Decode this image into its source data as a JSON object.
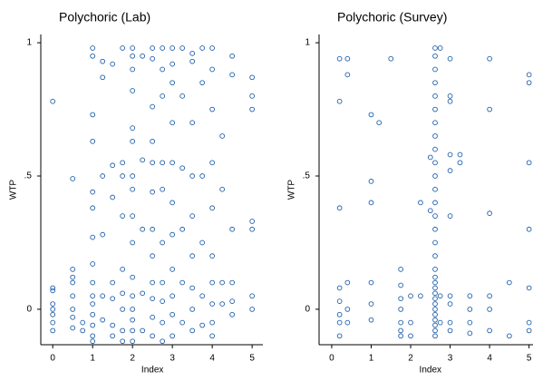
{
  "chart_data": [
    {
      "type": "scatter",
      "title": "Polychoric (Lab)",
      "x_label": "Index",
      "y_label": "WTP",
      "color": "#1f5fa8",
      "xlim": [
        -0.3,
        5.27
      ],
      "ylim": [
        -0.133,
        1.031
      ],
      "xticks": [
        0,
        1,
        2,
        3,
        4,
        5
      ],
      "yticks": [
        0,
        {
          "value": 0.5,
          "label": ".5"
        },
        1
      ],
      "x": [
        0,
        0,
        0,
        0,
        0,
        0,
        0,
        0,
        0.5,
        0.5,
        0.5,
        0.5,
        0.5,
        0.5,
        0.5,
        0.5,
        0.75,
        0.75,
        1,
        1,
        1,
        1,
        1,
        1,
        1,
        1,
        1,
        1,
        1,
        1,
        1,
        1,
        1,
        1.25,
        1.25,
        1.25,
        1.25,
        1.25,
        1.25,
        1.5,
        1.5,
        1.5,
        1.5,
        1.5,
        1.5,
        1.5,
        1.75,
        1.75,
        1.75,
        1.75,
        1.75,
        1.75,
        1.75,
        1.75,
        1.75,
        2,
        2,
        2,
        2,
        2,
        2,
        2,
        2,
        2,
        2,
        2,
        2,
        2,
        2,
        2,
        2,
        2.25,
        2.25,
        2.25,
        2.25,
        2.25,
        2.5,
        2.5,
        2.5,
        2.5,
        2.5,
        2.5,
        2.5,
        2.5,
        2.5,
        2.5,
        2.5,
        2.5,
        2.75,
        2.75,
        2.75,
        2.75,
        2.75,
        2.75,
        2.75,
        2.75,
        2.75,
        2.75,
        3,
        3,
        3,
        3,
        3,
        3,
        3,
        3,
        3,
        3,
        3,
        3.25,
        3.25,
        3.25,
        3.25,
        3.25,
        3.25,
        3.5,
        3.5,
        3.5,
        3.5,
        3.5,
        3.5,
        3.5,
        3.5,
        3.5,
        3.75,
        3.75,
        3.75,
        3.75,
        3.75,
        3.75,
        4,
        4,
        4,
        4,
        4,
        4,
        4,
        4,
        4,
        4,
        4.25,
        4.25,
        4.25,
        4.25,
        4.5,
        4.5,
        4.5,
        4.5,
        4.5,
        4.5,
        5,
        5,
        5,
        5,
        5,
        5,
        5
      ],
      "y": [
        0.78,
        0.08,
        0.07,
        0.02,
        0,
        -0.02,
        -0.05,
        -0.08,
        0.49,
        0.15,
        0.12,
        0.1,
        0.05,
        0,
        -0.03,
        -0.07,
        -0.05,
        -0.08,
        0.98,
        0.95,
        0.73,
        0.63,
        0.44,
        0.38,
        0.27,
        0.17,
        0.1,
        0.05,
        0.02,
        -0.02,
        -0.06,
        -0.1,
        -0.12,
        0.93,
        0.87,
        0.5,
        0.28,
        0.05,
        -0.04,
        0.92,
        0.54,
        0.42,
        0.1,
        0.04,
        -0.06,
        -0.1,
        0.98,
        0.55,
        0.5,
        0.35,
        0.15,
        0.06,
        0,
        -0.08,
        -0.12,
        0.98,
        0.95,
        0.9,
        0.82,
        0.68,
        0.63,
        0.5,
        0.45,
        0.35,
        0.25,
        0.12,
        0.05,
        0,
        -0.04,
        -0.08,
        -0.12,
        0.95,
        0.56,
        0.3,
        0.06,
        -0.08,
        0.98,
        0.94,
        0.76,
        0.63,
        0.55,
        0.44,
        0.3,
        0.2,
        0.1,
        0.04,
        -0.03,
        -0.1,
        0.98,
        0.9,
        0.8,
        0.55,
        0.45,
        0.25,
        0.1,
        0.03,
        -0.05,
        -0.12,
        0.98,
        0.92,
        0.85,
        0.7,
        0.55,
        0.4,
        0.28,
        0.15,
        0.05,
        -0.02,
        -0.1,
        0.98,
        0.8,
        0.53,
        0.3,
        0.1,
        -0.05,
        0.96,
        0.93,
        0.7,
        0.5,
        0.35,
        0.2,
        0.08,
        0,
        -0.08,
        0.98,
        0.85,
        0.5,
        0.25,
        0.05,
        -0.06,
        0.98,
        0.9,
        0.75,
        0.55,
        0.38,
        0.2,
        0.1,
        0.02,
        -0.05,
        -0.1,
        0.65,
        0.45,
        0.1,
        0.02,
        0.95,
        0.88,
        0.3,
        0.1,
        0.03,
        -0.02,
        0.87,
        0.8,
        0.75,
        0.33,
        0.3,
        0.05,
        0
      ]
    },
    {
      "type": "scatter",
      "title": "Polychoric (Survey)",
      "x_label": "Index",
      "y_label": "WTP",
      "color": "#1f5fa8",
      "xlim": [
        -0.32,
        5.1
      ],
      "ylim": [
        -0.133,
        1.031
      ],
      "xticks": [
        0,
        1,
        2,
        3,
        4,
        5
      ],
      "yticks": [
        0,
        {
          "value": 0.5,
          "label": ".5"
        },
        1
      ],
      "x": [
        0.2,
        0.2,
        0.2,
        0.2,
        0.2,
        0.2,
        0.2,
        0.2,
        0.4,
        0.4,
        0.4,
        0.4,
        0.4,
        1,
        1,
        1,
        1,
        1,
        1,
        1.2,
        1.5,
        1.75,
        1.75,
        1.75,
        1.75,
        1.75,
        1.75,
        1.75,
        2,
        2,
        2,
        2.25,
        2.25,
        2.5,
        2.5,
        2.62,
        2.62,
        2.62,
        2.62,
        2.62,
        2.62,
        2.62,
        2.62,
        2.62,
        2.62,
        2.62,
        2.62,
        2.62,
        2.62,
        2.62,
        2.62,
        2.62,
        2.62,
        2.62,
        2.62,
        2.62,
        2.62,
        2.62,
        2.62,
        2.62,
        2.62,
        2.62,
        2.62,
        2.62,
        2.62,
        2.75,
        2.75,
        2.75,
        3,
        3,
        3,
        3,
        3,
        3,
        3,
        3,
        3,
        3,
        3.25,
        3.25,
        3.5,
        3.5,
        3.5,
        3.5,
        4,
        4,
        4,
        4,
        4,
        4,
        4.5,
        4.5,
        5,
        5,
        5,
        5,
        5,
        5,
        5
      ],
      "y": [
        0.94,
        0.78,
        0.38,
        0.08,
        0.03,
        -0.02,
        -0.05,
        -0.1,
        0.94,
        0.88,
        0.1,
        0,
        -0.05,
        0.73,
        0.48,
        0.4,
        0.1,
        0.02,
        -0.04,
        0.7,
        0.94,
        0.15,
        0.09,
        0.04,
        0,
        -0.05,
        -0.08,
        -0.1,
        0.05,
        -0.05,
        -0.1,
        0.4,
        0.05,
        0.57,
        0.37,
        0.98,
        0.95,
        0.9,
        0.85,
        0.8,
        0.75,
        0.7,
        0.65,
        0.6,
        0.55,
        0.5,
        0.45,
        0.4,
        0.35,
        0.3,
        0.25,
        0.2,
        0.15,
        0.12,
        0.1,
        0.08,
        0.06,
        0.04,
        0.02,
        0,
        -0.02,
        -0.04,
        -0.06,
        -0.08,
        -0.1,
        0.98,
        0.05,
        -0.05,
        0.94,
        0.8,
        0.78,
        0.58,
        0.52,
        0.35,
        0.05,
        0.02,
        -0.05,
        -0.08,
        0.55,
        0.58,
        0.05,
        0,
        -0.05,
        -0.09,
        0.94,
        0.75,
        0.36,
        0.05,
        0,
        -0.08,
        0.1,
        -0.1,
        0.88,
        0.85,
        0.55,
        0.3,
        0.08,
        -0.05,
        -0.08
      ]
    }
  ]
}
